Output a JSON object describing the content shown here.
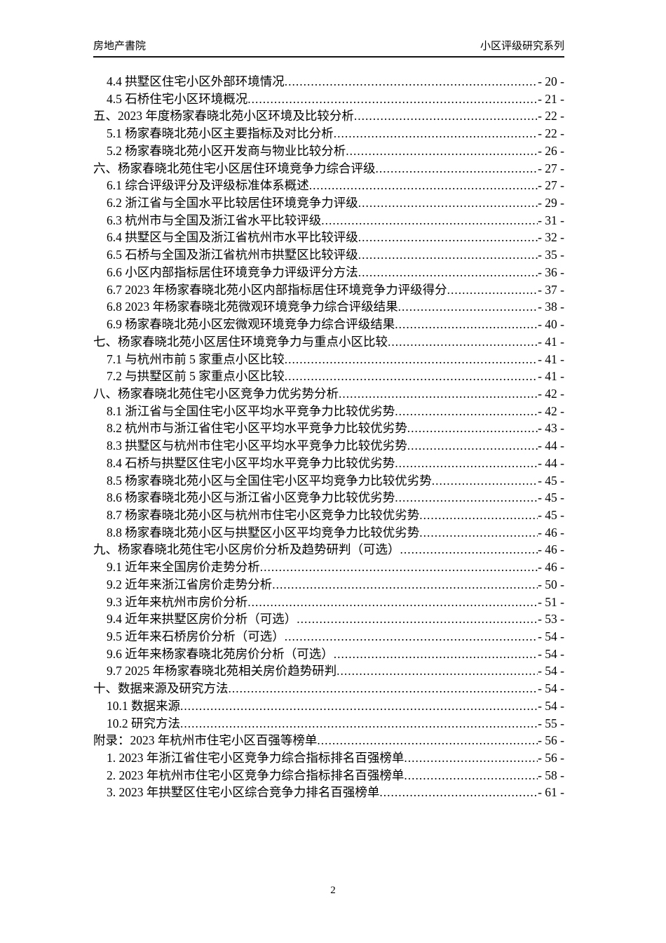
{
  "header": {
    "left_title": "房地产書院",
    "right_title": "小区评级研究系列"
  },
  "toc": {
    "entries": [
      {
        "level": 2,
        "label": "4.4 拱墅区住宅小区外部环境情况",
        "page": "- 20 -"
      },
      {
        "level": 2,
        "label": "4.5 石桥住宅小区环境概况",
        "page": "- 21 -"
      },
      {
        "level": 1,
        "label": "五、2023 年度杨家春晓北苑小区环境及比较分析",
        "page": "- 22 -"
      },
      {
        "level": 2,
        "label": "5.1 杨家春晓北苑小区主要指标及对比分析",
        "page": "- 22 -"
      },
      {
        "level": 2,
        "label": "5.2 杨家春晓北苑小区开发商与物业比较分析",
        "page": "- 26 -"
      },
      {
        "level": 1,
        "label": "六、杨家春晓北苑住宅小区居住环境竞争力综合评级",
        "page": "- 27 -"
      },
      {
        "level": 2,
        "label": "6.1 综合评级评分及评级标准体系概述",
        "page": "- 27 -"
      },
      {
        "level": 2,
        "label": "6.2 浙江省与全国水平比较居住环境竞争力评级",
        "page": "- 29 -"
      },
      {
        "level": 2,
        "label": "6.3 杭州市与全国及浙江省水平比较评级",
        "page": "- 31 -"
      },
      {
        "level": 2,
        "label": "6.4 拱墅区与全国及浙江省杭州市水平比较评级",
        "page": "- 32 -"
      },
      {
        "level": 2,
        "label": "6.5 石桥与全国及浙江省杭州市拱墅区比较评级",
        "page": "- 35 -"
      },
      {
        "level": 2,
        "label": "6.6 小区内部指标居住环境竞争力评级评分方法",
        "page": "- 36 -"
      },
      {
        "level": 2,
        "label": "6.7 2023 年杨家春晓北苑小区内部指标居住环境竞争力评级得分",
        "page": "- 37 -"
      },
      {
        "level": 2,
        "label": "6.8 2023 年杨家春晓北苑微观环境竞争力综合评级结果",
        "page": "- 38 -"
      },
      {
        "level": 2,
        "label": "6.9 杨家春晓北苑小区宏微观环境竞争力综合评级结果",
        "page": "- 40 -"
      },
      {
        "level": 1,
        "label": "七、杨家春晓北苑小区居住环境竞争力与重点小区比较",
        "page": "- 41 -"
      },
      {
        "level": 2,
        "label": "7.1 与杭州市前 5 家重点小区比较",
        "page": "- 41 -"
      },
      {
        "level": 2,
        "label": "7.2 与拱墅区前 5 家重点小区比较",
        "page": "- 41 -"
      },
      {
        "level": 1,
        "label": "八、杨家春晓北苑住宅小区竞争力优劣势分析",
        "page": "- 42 -"
      },
      {
        "level": 2,
        "label": "8.1 浙江省与全国住宅小区平均水平竞争力比较优劣势",
        "page": "- 42 -"
      },
      {
        "level": 2,
        "label": "8.2 杭州市与浙江省住宅小区平均水平竞争力比较优劣势",
        "page": "- 43 -"
      },
      {
        "level": 2,
        "label": "8.3 拱墅区与杭州市住宅小区平均水平竞争力比较优劣势",
        "page": "- 44 -"
      },
      {
        "level": 2,
        "label": "8.4 石桥与拱墅区住宅小区平均水平竞争力比较优劣势",
        "page": "- 44 -"
      },
      {
        "level": 2,
        "label": "8.5 杨家春晓北苑小区与全国住宅小区平均竞争力比较优劣势",
        "page": "- 45 -"
      },
      {
        "level": 2,
        "label": "8.6 杨家春晓北苑小区与浙江省小区竞争力比较优劣势",
        "page": "- 45 -"
      },
      {
        "level": 2,
        "label": "8.7 杨家春晓北苑小区与杭州市住宅小区竞争力比较优劣势",
        "page": "- 45 -"
      },
      {
        "level": 2,
        "label": "8.8 杨家春晓北苑小区与拱墅区小区平均竞争力比较优劣势",
        "page": "- 46 -"
      },
      {
        "level": 1,
        "label": "九、杨家春晓北苑住宅小区房价分析及趋势研判（可选）",
        "page": "- 46 -"
      },
      {
        "level": 2,
        "label": "9.1 近年来全国房价走势分析",
        "page": "- 46 -"
      },
      {
        "level": 2,
        "label": "9.2 近年来浙江省房价走势分析",
        "page": "- 50 -"
      },
      {
        "level": 2,
        "label": "9.3 近年来杭州市房价分析",
        "page": "- 51 -"
      },
      {
        "level": 2,
        "label": "9.4 近年来拱墅区房价分析（可选）",
        "page": "- 53 -"
      },
      {
        "level": 2,
        "label": "9.5 近年来石桥房价分析（可选）",
        "page": "- 54 -"
      },
      {
        "level": 2,
        "label": "9.6 近年来杨家春晓北苑房价分析（可选）",
        "page": "- 54 -"
      },
      {
        "level": 2,
        "label": "9.7 2025 年杨家春晓北苑相关房价趋势研判",
        "page": "- 54 -"
      },
      {
        "level": 1,
        "label": "十、数据来源及研究方法",
        "page": "- 54 -"
      },
      {
        "level": 2,
        "label": "10.1 数据来源",
        "page": "- 54 -"
      },
      {
        "level": 2,
        "label": "10.2 研究方法",
        "page": "- 55 -"
      },
      {
        "level": 1,
        "label": "附录：2023 年杭州市住宅小区百强等榜单",
        "page": "- 56 -"
      },
      {
        "level": 2,
        "label": "1. 2023 年浙江省住宅小区竞争力综合指标排名百强榜单",
        "page": "- 56 -"
      },
      {
        "level": 2,
        "label": "2. 2023 年杭州市住宅小区竞争力综合指标排名百强榜单",
        "page": "- 58 -"
      },
      {
        "level": 2,
        "label": "3. 2023 年拱墅区住宅小区综合竞争力排名百强榜单",
        "page": "- 61 -"
      }
    ]
  },
  "footer": {
    "page_number": "2"
  }
}
